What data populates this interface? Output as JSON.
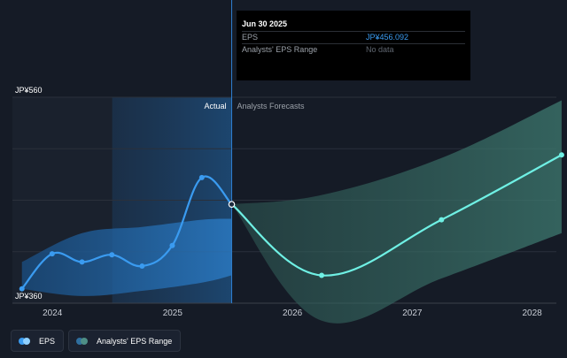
{
  "tooltip": {
    "date": "Jun 30 2025",
    "rows": [
      {
        "label": "EPS",
        "value": "JP¥456.092"
      },
      {
        "label": "Analysts' EPS Range",
        "value": "No data"
      }
    ]
  },
  "legend": {
    "eps": "EPS",
    "range": "Analysts' EPS Range"
  },
  "colors": {
    "background": "#151b26",
    "eps_line": "#3a9bf0",
    "forecast_line": "#6ff0e4",
    "past_band": "#1f6eb5",
    "forecast_band": "#3e7a70",
    "tooltip_value": "#3a9bf0"
  },
  "chart_data": {
    "type": "line",
    "ylim": [
      360,
      560
    ],
    "y_tick_labels": [
      "JP¥560",
      "JP¥360"
    ],
    "x_tick_labels": [
      "2024",
      "2025",
      "2026",
      "2027",
      "2028"
    ],
    "x_tick_dates": [
      "2024-01-01",
      "2025-01-01",
      "2026-01-01",
      "2027-01-01",
      "2028-01-01"
    ],
    "xlim": [
      "2023-09-01",
      "2028-03-15"
    ],
    "divider_date": "2025-06-30",
    "highlight_start": "2024-07-01",
    "segment_labels": {
      "actual": "Actual",
      "forecast": "Analysts Forecasts"
    },
    "grid": true,
    "series": [
      {
        "name": "EPS",
        "points": [
          {
            "x": "2023-09-30",
            "y": 374
          },
          {
            "x": "2023-12-31",
            "y": 408
          },
          {
            "x": "2024-03-31",
            "y": 400
          },
          {
            "x": "2024-06-30",
            "y": 407
          },
          {
            "x": "2024-09-30",
            "y": 396
          },
          {
            "x": "2024-12-31",
            "y": 416
          },
          {
            "x": "2025-03-31",
            "y": 482
          },
          {
            "x": "2025-06-30",
            "y": 456
          }
        ]
      },
      {
        "name": "Analysts Forecasts",
        "points": [
          {
            "x": "2025-06-30",
            "y": 456
          },
          {
            "x": "2026-03-31",
            "y": 387
          },
          {
            "x": "2027-03-31",
            "y": 441
          },
          {
            "x": "2028-03-31",
            "y": 504
          }
        ]
      }
    ],
    "past_range": {
      "upper": [
        {
          "x": "2023-09-30",
          "y": 400
        },
        {
          "x": "2024-03-31",
          "y": 428
        },
        {
          "x": "2024-09-30",
          "y": 434
        },
        {
          "x": "2025-03-31",
          "y": 441
        },
        {
          "x": "2025-06-30",
          "y": 442
        }
      ],
      "lower": [
        {
          "x": "2023-09-30",
          "y": 374
        },
        {
          "x": "2024-03-31",
          "y": 367
        },
        {
          "x": "2024-09-30",
          "y": 372
        },
        {
          "x": "2025-03-31",
          "y": 380
        },
        {
          "x": "2025-06-30",
          "y": 387
        }
      ]
    },
    "forecast_range": {
      "upper": [
        {
          "x": "2025-06-30",
          "y": 456
        },
        {
          "x": "2026-03-31",
          "y": 465
        },
        {
          "x": "2027-03-31",
          "y": 501
        },
        {
          "x": "2028-03-31",
          "y": 557
        }
      ],
      "lower": [
        {
          "x": "2025-06-30",
          "y": 456
        },
        {
          "x": "2026-03-31",
          "y": 343
        },
        {
          "x": "2027-03-31",
          "y": 384
        },
        {
          "x": "2028-03-31",
          "y": 428
        }
      ]
    }
  }
}
